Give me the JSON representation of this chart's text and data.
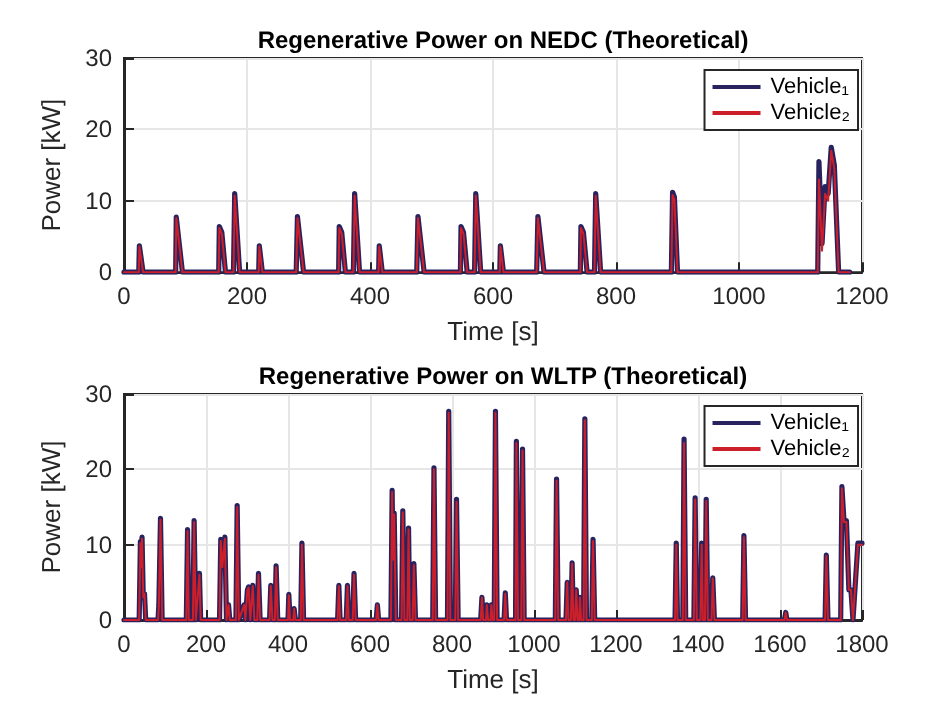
{
  "chart_data": [
    {
      "type": "line",
      "title": "Regenerative Power on NEDC (Theoretical)",
      "xlabel": "Time [s]",
      "ylabel": "Power [kW]",
      "xlim": [
        0,
        1200
      ],
      "xticks": [
        0,
        200,
        400,
        600,
        800,
        1000,
        1200
      ],
      "ylim": [
        0,
        30
      ],
      "yticks": [
        0,
        10,
        20,
        30
      ],
      "grid": true,
      "legend": "top right",
      "x": [
        0,
        24,
        25,
        31,
        84,
        85,
        95,
        154,
        155,
        159,
        160,
        165,
        178,
        180,
        188,
        219,
        220,
        225,
        280,
        282,
        292,
        349,
        350,
        354,
        355,
        360,
        373,
        375,
        383,
        414,
        415,
        420,
        476,
        478,
        488,
        547,
        548,
        552,
        553,
        558,
        570,
        572,
        580,
        611,
        612,
        617,
        671,
        673,
        683,
        742,
        743,
        747,
        748,
        753,
        765,
        767,
        775,
        890,
        892,
        895,
        900,
        1128,
        1130,
        1135,
        1140,
        1145,
        1150,
        1155,
        1162,
        1180
      ],
      "series": [
        {
          "name": "Vehicle₁",
          "color": "#28235e",
          "values": [
            0,
            0,
            3.7,
            0,
            0,
            7.7,
            0,
            0,
            6.4,
            5.6,
            5.5,
            0,
            0,
            11,
            0,
            0,
            3.7,
            0,
            0,
            7.8,
            0,
            0,
            6.4,
            5.6,
            5.5,
            0,
            0,
            11,
            0,
            0,
            3.7,
            0,
            0,
            7.8,
            0,
            0,
            6.4,
            5.6,
            5.5,
            0,
            0,
            11,
            0,
            0,
            3.7,
            0,
            0,
            7.8,
            0,
            0,
            6.4,
            5.6,
            5.5,
            0,
            0,
            11,
            0,
            0,
            11.2,
            10.5,
            0,
            0,
            15.5,
            4,
            12,
            11,
            17.5,
            15,
            0,
            0
          ]
        },
        {
          "name": "Vehicle₂",
          "color": "#cc1f2a",
          "values": [
            0,
            0,
            3.6,
            0,
            0,
            7.6,
            0,
            0,
            6.2,
            5.4,
            5.4,
            0,
            0,
            10.7,
            0,
            0,
            3.6,
            0,
            0,
            7.6,
            0,
            0,
            6.2,
            5.4,
            5.4,
            0,
            0,
            10.7,
            0,
            0,
            3.6,
            0,
            0,
            7.6,
            0,
            0,
            6.2,
            5.4,
            5.4,
            0,
            0,
            10.7,
            0,
            0,
            3.6,
            0,
            0,
            7.6,
            0,
            0,
            6.2,
            5.4,
            5.4,
            0,
            0,
            10.7,
            0,
            0,
            10.8,
            10.2,
            0,
            0,
            13,
            3,
            11,
            10,
            17,
            14.5,
            0,
            0
          ]
        }
      ]
    },
    {
      "type": "line",
      "title": "Regenerative Power on WLTP (Theoretical)",
      "xlabel": "Time [s]",
      "ylabel": "Power [kW]",
      "xlim": [
        0,
        1800
      ],
      "xticks": [
        0,
        200,
        400,
        600,
        800,
        1000,
        1200,
        1400,
        1600,
        1800
      ],
      "ylim": [
        0,
        30
      ],
      "yticks": [
        0,
        10,
        20,
        30
      ],
      "grid": true,
      "legend": "top right",
      "x": [
        0,
        37,
        40,
        42,
        44,
        47,
        50,
        53,
        83,
        85,
        89,
        93,
        152,
        155,
        158,
        168,
        171,
        175,
        184,
        187,
        233,
        236,
        240,
        246,
        250,
        255,
        258,
        273,
        276,
        280,
        293,
        296,
        301,
        304,
        308,
        314,
        318,
        325,
        328,
        332,
        355,
        358,
        362,
        368,
        371,
        375,
        400,
        402,
        405,
        413,
        415,
        418,
        431,
        434,
        438,
        521,
        524,
        527,
        542,
        545,
        548,
        558,
        561,
        565,
        615,
        618,
        621,
        651,
        654,
        656,
        659,
        663,
        677,
        680,
        684,
        691,
        694,
        697,
        704,
        707,
        711,
        753,
        756,
        760,
        789,
        792,
        796,
        808,
        811,
        815,
        870,
        873,
        876,
        883,
        885,
        888,
        894,
        896,
        899,
        903,
        906,
        910,
        927,
        930,
        933,
        955,
        957,
        961,
        969,
        972,
        976,
        1052,
        1055,
        1059,
        1078,
        1081,
        1084,
        1090,
        1093,
        1096,
        1100,
        1103,
        1106,
        1110,
        1112,
        1115,
        1121,
        1124,
        1128,
        1141,
        1144,
        1148,
        1344,
        1347,
        1350,
        1363,
        1366,
        1370,
        1390,
        1393,
        1397,
        1406,
        1409,
        1412,
        1417,
        1420,
        1424,
        1433,
        1436,
        1440,
        1509,
        1512,
        1516,
        1611,
        1614,
        1617,
        1710,
        1713,
        1717,
        1748,
        1751,
        1756,
        1762,
        1768,
        1773,
        1778,
        1790,
        1800
      ],
      "series": [
        {
          "name": "Vehicle₁",
          "color": "#28235e",
          "values": [
            0,
            0,
            10.4,
            7,
            11,
            3,
            3.5,
            0,
            0,
            2,
            13.5,
            0,
            0,
            12,
            0,
            0,
            13.2,
            0,
            6.2,
            0,
            0,
            10.7,
            7,
            11,
            0,
            2,
            0,
            0,
            15.2,
            0,
            2,
            0,
            4,
            4.4,
            0,
            4.6,
            0,
            0,
            6.2,
            0,
            0,
            4.6,
            0,
            0,
            7.2,
            0,
            0,
            3.4,
            0,
            0,
            1.5,
            0,
            0,
            10.2,
            0,
            0,
            4.6,
            0,
            0,
            4.6,
            0,
            0,
            6.2,
            0,
            0,
            2,
            0,
            0,
            17.2,
            8,
            14.2,
            0,
            0,
            14.5,
            0,
            0,
            12.2,
            0,
            0,
            7.5,
            0,
            0,
            20.2,
            0,
            0,
            27.7,
            0,
            0,
            16,
            0,
            0,
            3,
            0,
            0,
            2,
            0,
            0,
            2,
            0,
            0,
            27.7,
            0,
            0,
            3.6,
            0,
            0,
            23.7,
            0,
            0,
            22.7,
            0,
            0,
            18.7,
            0,
            0,
            5,
            0,
            0,
            7.6,
            0,
            0,
            4,
            0,
            0,
            3,
            0,
            0,
            26.7,
            0,
            0,
            10.7,
            0,
            0,
            10.2,
            0,
            0,
            24,
            0,
            0,
            16.2,
            0,
            0,
            10.2,
            0,
            0,
            16,
            0,
            0,
            5.6,
            0,
            0,
            11.2,
            0,
            0,
            1,
            0,
            0,
            8.6,
            0,
            0,
            17.7,
            13.2,
            13.2,
            4,
            4,
            0,
            10.2,
            10.2
          ]
        },
        {
          "name": "Vehicle₂",
          "color": "#cc1f2a",
          "values": [
            0,
            0,
            10.2,
            7,
            10.8,
            3,
            3.5,
            0,
            0,
            2,
            13.3,
            0,
            0,
            11.8,
            0,
            0,
            13,
            0,
            6,
            0,
            0,
            10.5,
            7,
            10.8,
            0,
            2,
            0,
            0,
            15,
            0,
            2,
            0,
            4,
            4.3,
            0,
            4.5,
            0,
            0,
            6,
            0,
            0,
            4.5,
            0,
            0,
            7,
            0,
            0,
            3.3,
            0,
            0,
            1.5,
            0,
            0,
            10,
            0,
            0,
            4.5,
            0,
            0,
            4.5,
            0,
            0,
            6,
            0,
            0,
            2,
            0,
            0,
            17,
            8,
            14,
            0,
            0,
            14.3,
            0,
            0,
            12,
            0,
            0,
            7.3,
            0,
            0,
            20,
            0,
            0,
            27.5,
            0,
            0,
            15.7,
            0,
            0,
            3,
            0,
            0,
            2,
            0,
            0,
            2,
            0,
            0,
            27.5,
            0,
            0,
            3.5,
            0,
            0,
            23.5,
            0,
            0,
            22.5,
            0,
            0,
            18.5,
            0,
            0,
            5,
            0,
            0,
            7.5,
            0,
            0,
            4,
            0,
            0,
            3,
            0,
            0,
            26.5,
            0,
            0,
            10.5,
            0,
            0,
            10,
            0,
            0,
            23.5,
            0,
            0,
            16,
            0,
            0,
            10,
            0,
            0,
            15.8,
            0,
            0,
            5.5,
            0,
            0,
            11,
            0,
            0,
            1,
            0,
            0,
            8.5,
            0,
            0,
            17.5,
            13,
            13,
            4,
            4,
            0,
            10,
            10
          ]
        }
      ]
    }
  ]
}
